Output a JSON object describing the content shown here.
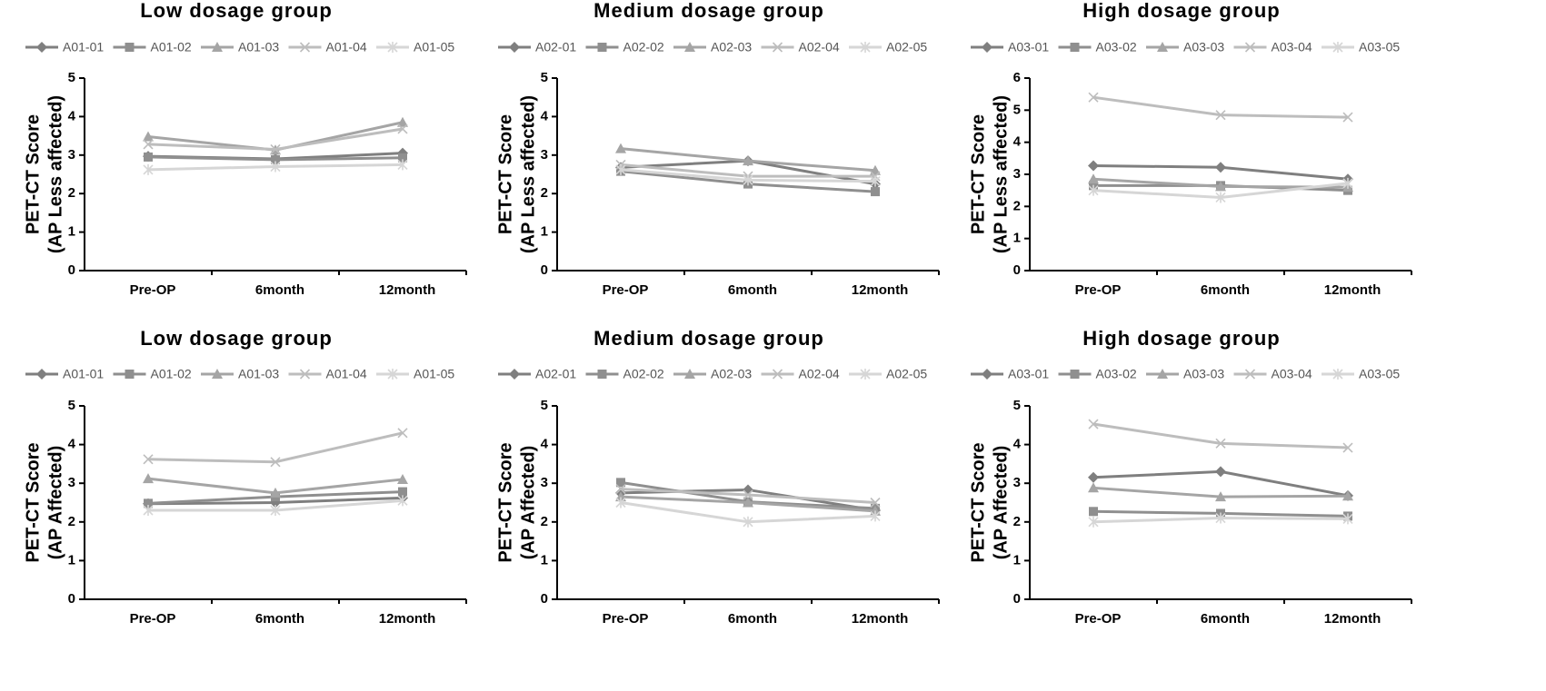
{
  "chart_data": [
    {
      "type": "line",
      "title": "Low dosage group",
      "ylabel": [
        "PET-CT Score",
        "(AP Less affected)"
      ],
      "categories": [
        "Pre-OP",
        "6month",
        "12month"
      ],
      "ylim": [
        0,
        5
      ],
      "yticks": [
        0,
        1,
        2,
        3,
        4,
        5
      ],
      "series": [
        {
          "name": "A01-01",
          "color": "#7f7f7f",
          "marker": "diamond",
          "values": [
            2.97,
            2.9,
            3.05
          ]
        },
        {
          "name": "A01-02",
          "color": "#8f8f8f",
          "marker": "square",
          "values": [
            2.95,
            2.88,
            2.93
          ]
        },
        {
          "name": "A01-03",
          "color": "#a5a5a5",
          "marker": "triangle",
          "values": [
            3.48,
            3.13,
            3.85
          ]
        },
        {
          "name": "A01-04",
          "color": "#bdbdbd",
          "marker": "x",
          "values": [
            3.28,
            3.15,
            3.68
          ]
        },
        {
          "name": "A01-05",
          "color": "#d6d6d6",
          "marker": "star",
          "values": [
            2.62,
            2.7,
            2.75
          ]
        }
      ]
    },
    {
      "type": "line",
      "title": "Medium dosage group",
      "ylabel": [
        "PET-CT Score",
        "(AP Less affected)"
      ],
      "categories": [
        "Pre-OP",
        "6month",
        "12month"
      ],
      "ylim": [
        0,
        5
      ],
      "yticks": [
        0,
        1,
        2,
        3,
        4,
        5
      ],
      "series": [
        {
          "name": "A02-01",
          "color": "#7f7f7f",
          "marker": "diamond",
          "values": [
            2.68,
            2.85,
            2.25
          ]
        },
        {
          "name": "A02-02",
          "color": "#8f8f8f",
          "marker": "square",
          "values": [
            2.58,
            2.25,
            2.05
          ]
        },
        {
          "name": "A02-03",
          "color": "#a5a5a5",
          "marker": "triangle",
          "values": [
            3.17,
            2.85,
            2.6
          ]
        },
        {
          "name": "A02-04",
          "color": "#bdbdbd",
          "marker": "x",
          "values": [
            2.75,
            2.45,
            2.45
          ]
        },
        {
          "name": "A02-05",
          "color": "#d6d6d6",
          "marker": "star",
          "values": [
            2.62,
            2.35,
            2.32
          ]
        }
      ]
    },
    {
      "type": "line",
      "title": "High dosage group",
      "ylabel": [
        "PET-CT Score",
        "(AP Less affected)"
      ],
      "categories": [
        "Pre-OP",
        "6month",
        "12month"
      ],
      "ylim": [
        0,
        6
      ],
      "yticks": [
        0,
        1,
        2,
        3,
        4,
        5,
        6
      ],
      "series": [
        {
          "name": "A03-01",
          "color": "#7f7f7f",
          "marker": "diamond",
          "values": [
            3.27,
            3.22,
            2.85
          ]
        },
        {
          "name": "A03-02",
          "color": "#8f8f8f",
          "marker": "square",
          "values": [
            2.65,
            2.65,
            2.5
          ]
        },
        {
          "name": "A03-03",
          "color": "#a5a5a5",
          "marker": "triangle",
          "values": [
            2.85,
            2.62,
            2.6
          ]
        },
        {
          "name": "A03-04",
          "color": "#bdbdbd",
          "marker": "x",
          "values": [
            5.4,
            4.85,
            4.78
          ]
        },
        {
          "name": "A03-05",
          "color": "#d6d6d6",
          "marker": "star",
          "values": [
            2.5,
            2.28,
            2.72
          ]
        }
      ]
    },
    {
      "type": "line",
      "title": "Low dosage group",
      "ylabel": [
        "PET-CT Score",
        "(AP Affected)"
      ],
      "categories": [
        "Pre-OP",
        "6month",
        "12month"
      ],
      "ylim": [
        0,
        5
      ],
      "yticks": [
        0,
        1,
        2,
        3,
        4,
        5
      ],
      "series": [
        {
          "name": "A01-01",
          "color": "#7f7f7f",
          "marker": "diamond",
          "values": [
            2.47,
            2.5,
            2.62
          ]
        },
        {
          "name": "A01-02",
          "color": "#8f8f8f",
          "marker": "square",
          "values": [
            2.48,
            2.65,
            2.78
          ]
        },
        {
          "name": "A01-03",
          "color": "#a5a5a5",
          "marker": "triangle",
          "values": [
            3.12,
            2.75,
            3.1
          ]
        },
        {
          "name": "A01-04",
          "color": "#bdbdbd",
          "marker": "x",
          "values": [
            3.62,
            3.55,
            4.3
          ]
        },
        {
          "name": "A01-05",
          "color": "#d6d6d6",
          "marker": "star",
          "values": [
            2.3,
            2.3,
            2.55
          ]
        }
      ]
    },
    {
      "type": "line",
      "title": "Medium dosage group",
      "ylabel": [
        "PET-CT Score",
        "(AP Affected)"
      ],
      "categories": [
        "Pre-OP",
        "6month",
        "12month"
      ],
      "ylim": [
        0,
        5
      ],
      "yticks": [
        0,
        1,
        2,
        3,
        4,
        5
      ],
      "series": [
        {
          "name": "A02-01",
          "color": "#7f7f7f",
          "marker": "diamond",
          "values": [
            2.75,
            2.83,
            2.3
          ]
        },
        {
          "name": "A02-02",
          "color": "#8f8f8f",
          "marker": "square",
          "values": [
            3.02,
            2.52,
            2.35
          ]
        },
        {
          "name": "A02-03",
          "color": "#a5a5a5",
          "marker": "triangle",
          "values": [
            2.65,
            2.5,
            2.28
          ]
        },
        {
          "name": "A02-04",
          "color": "#bdbdbd",
          "marker": "x",
          "values": [
            2.85,
            2.7,
            2.5
          ]
        },
        {
          "name": "A02-05",
          "color": "#d6d6d6",
          "marker": "star",
          "values": [
            2.5,
            2.0,
            2.15
          ]
        }
      ]
    },
    {
      "type": "line",
      "title": "High dosage group",
      "ylabel": [
        "PET-CT Score",
        "(AP Affected)"
      ],
      "categories": [
        "Pre-OP",
        "6month",
        "12month"
      ],
      "ylim": [
        0,
        5
      ],
      "yticks": [
        0,
        1,
        2,
        3,
        4,
        5
      ],
      "series": [
        {
          "name": "A03-01",
          "color": "#7f7f7f",
          "marker": "diamond",
          "values": [
            3.15,
            3.3,
            2.68
          ]
        },
        {
          "name": "A03-02",
          "color": "#8f8f8f",
          "marker": "square",
          "values": [
            2.27,
            2.22,
            2.15
          ]
        },
        {
          "name": "A03-03",
          "color": "#a5a5a5",
          "marker": "triangle",
          "values": [
            2.88,
            2.65,
            2.67
          ]
        },
        {
          "name": "A03-04",
          "color": "#bdbdbd",
          "marker": "x",
          "values": [
            4.53,
            4.03,
            3.92
          ]
        },
        {
          "name": "A03-05",
          "color": "#d6d6d6",
          "marker": "star",
          "values": [
            2.0,
            2.1,
            2.08
          ]
        }
      ]
    }
  ]
}
